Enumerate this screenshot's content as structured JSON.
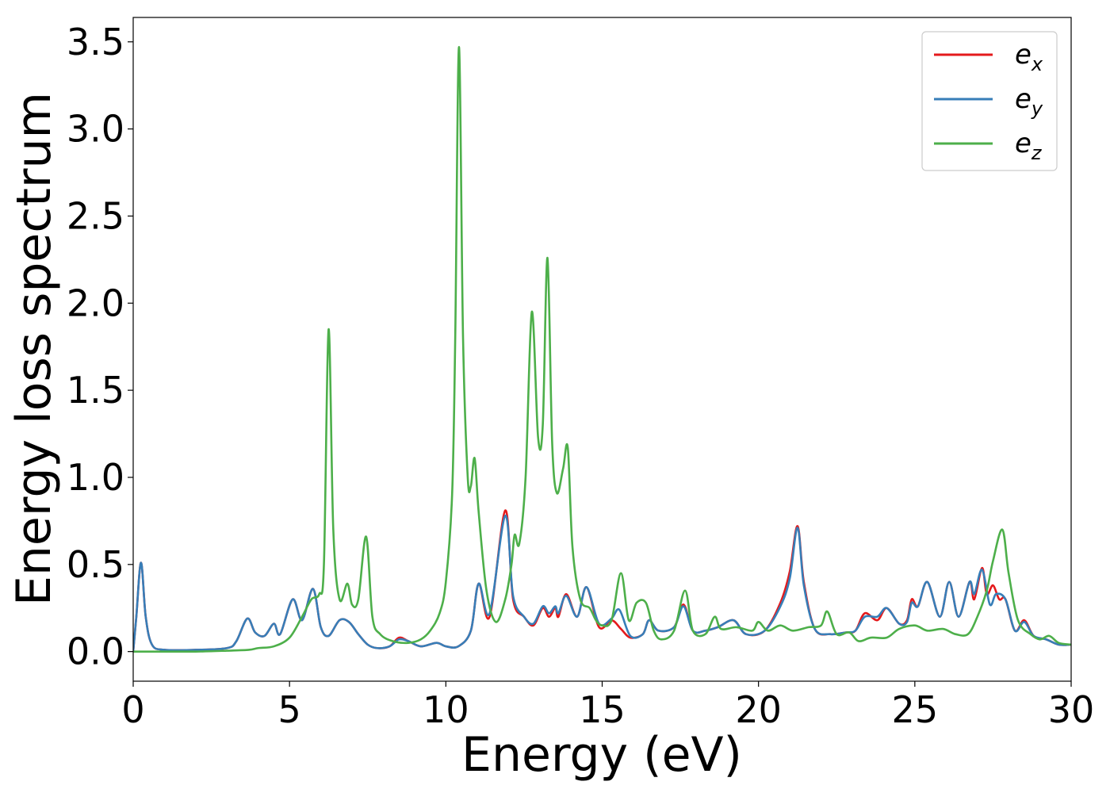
{
  "chart_data": {
    "type": "line",
    "title": "",
    "xlabel": "Energy (eV)",
    "ylabel": "Energy loss spectrum",
    "xlim": [
      0,
      30
    ],
    "ylim": [
      -0.17,
      3.64
    ],
    "xticks": [
      0,
      5,
      10,
      15,
      20,
      25,
      30
    ],
    "xtick_labels": [
      "0",
      "5",
      "10",
      "15",
      "20",
      "25",
      "30"
    ],
    "yticks": [
      0.0,
      0.5,
      1.0,
      1.5,
      2.0,
      2.5,
      3.0,
      3.5
    ],
    "ytick_labels": [
      "0.0",
      "0.5",
      "1.0",
      "1.5",
      "2.0",
      "2.5",
      "3.0",
      "3.5"
    ],
    "grid": false,
    "legend_position": "top-right",
    "series": [
      {
        "name": "e_x",
        "base": "e",
        "subscript": "x",
        "color": "#e41a1c",
        "points": [
          [
            0,
            0
          ],
          [
            0.1,
            0.2
          ],
          [
            0.25,
            0.51
          ],
          [
            0.4,
            0.2
          ],
          [
            0.6,
            0.04
          ],
          [
            1,
            0.01
          ],
          [
            2,
            0.01
          ],
          [
            3,
            0.02
          ],
          [
            3.3,
            0.06
          ],
          [
            3.65,
            0.19
          ],
          [
            3.9,
            0.11
          ],
          [
            4.2,
            0.09
          ],
          [
            4.5,
            0.16
          ],
          [
            4.7,
            0.1
          ],
          [
            5.1,
            0.3
          ],
          [
            5.4,
            0.18
          ],
          [
            5.75,
            0.36
          ],
          [
            6.0,
            0.14
          ],
          [
            6.25,
            0.09
          ],
          [
            6.6,
            0.18
          ],
          [
            6.9,
            0.17
          ],
          [
            7.2,
            0.1
          ],
          [
            7.5,
            0.04
          ],
          [
            7.8,
            0.02
          ],
          [
            8.2,
            0.03
          ],
          [
            8.5,
            0.08
          ],
          [
            8.8,
            0.06
          ],
          [
            9.2,
            0.03
          ],
          [
            9.7,
            0.05
          ],
          [
            10.0,
            0.03
          ],
          [
            10.4,
            0.03
          ],
          [
            10.8,
            0.12
          ],
          [
            11.05,
            0.39
          ],
          [
            11.4,
            0.2
          ],
          [
            11.9,
            0.81
          ],
          [
            12.15,
            0.3
          ],
          [
            12.5,
            0.2
          ],
          [
            12.8,
            0.15
          ],
          [
            13.1,
            0.25
          ],
          [
            13.3,
            0.2
          ],
          [
            13.5,
            0.25
          ],
          [
            13.6,
            0.2
          ],
          [
            13.85,
            0.33
          ],
          [
            14.2,
            0.2
          ],
          [
            14.5,
            0.37
          ],
          [
            14.9,
            0.14
          ],
          [
            15.3,
            0.18
          ],
          [
            15.6,
            0.13
          ],
          [
            15.9,
            0.08
          ],
          [
            16.3,
            0.1
          ],
          [
            16.5,
            0.18
          ],
          [
            16.8,
            0.12
          ],
          [
            17.3,
            0.14
          ],
          [
            17.6,
            0.27
          ],
          [
            17.9,
            0.12
          ],
          [
            18.3,
            0.12
          ],
          [
            18.7,
            0.14
          ],
          [
            19.2,
            0.18
          ],
          [
            19.6,
            0.1
          ],
          [
            20.2,
            0.12
          ],
          [
            20.7,
            0.28
          ],
          [
            21.0,
            0.46
          ],
          [
            21.25,
            0.72
          ],
          [
            21.45,
            0.4
          ],
          [
            21.8,
            0.13
          ],
          [
            22.3,
            0.1
          ],
          [
            22.8,
            0.11
          ],
          [
            23.1,
            0.12
          ],
          [
            23.4,
            0.22
          ],
          [
            23.8,
            0.18
          ],
          [
            24.1,
            0.25
          ],
          [
            24.5,
            0.16
          ],
          [
            24.75,
            0.18
          ],
          [
            24.9,
            0.3
          ],
          [
            25.1,
            0.26
          ],
          [
            25.4,
            0.4
          ],
          [
            25.8,
            0.2
          ],
          [
            26.1,
            0.4
          ],
          [
            26.4,
            0.2
          ],
          [
            26.75,
            0.4
          ],
          [
            26.9,
            0.3
          ],
          [
            27.15,
            0.48
          ],
          [
            27.3,
            0.33
          ],
          [
            27.5,
            0.38
          ],
          [
            27.7,
            0.3
          ],
          [
            27.9,
            0.3
          ],
          [
            28.2,
            0.12
          ],
          [
            28.5,
            0.18
          ],
          [
            28.8,
            0.09
          ],
          [
            29.2,
            0.07
          ],
          [
            29.6,
            0.04
          ],
          [
            30,
            0.04
          ]
        ]
      },
      {
        "name": "e_y",
        "base": "e",
        "subscript": "y",
        "color": "#377eb8",
        "points": [
          [
            0,
            0
          ],
          [
            0.1,
            0.2
          ],
          [
            0.25,
            0.51
          ],
          [
            0.4,
            0.2
          ],
          [
            0.6,
            0.04
          ],
          [
            1,
            0.01
          ],
          [
            2,
            0.01
          ],
          [
            3,
            0.02
          ],
          [
            3.3,
            0.06
          ],
          [
            3.65,
            0.19
          ],
          [
            3.9,
            0.11
          ],
          [
            4.2,
            0.09
          ],
          [
            4.5,
            0.16
          ],
          [
            4.7,
            0.1
          ],
          [
            5.1,
            0.3
          ],
          [
            5.4,
            0.18
          ],
          [
            5.75,
            0.36
          ],
          [
            6.0,
            0.14
          ],
          [
            6.25,
            0.09
          ],
          [
            6.6,
            0.18
          ],
          [
            6.9,
            0.17
          ],
          [
            7.2,
            0.1
          ],
          [
            7.5,
            0.04
          ],
          [
            7.8,
            0.02
          ],
          [
            8.2,
            0.03
          ],
          [
            8.5,
            0.07
          ],
          [
            8.8,
            0.06
          ],
          [
            9.2,
            0.03
          ],
          [
            9.7,
            0.05
          ],
          [
            10.0,
            0.03
          ],
          [
            10.4,
            0.03
          ],
          [
            10.8,
            0.12
          ],
          [
            11.05,
            0.39
          ],
          [
            11.4,
            0.22
          ],
          [
            11.9,
            0.78
          ],
          [
            12.15,
            0.32
          ],
          [
            12.5,
            0.2
          ],
          [
            12.8,
            0.16
          ],
          [
            13.1,
            0.26
          ],
          [
            13.3,
            0.22
          ],
          [
            13.5,
            0.26
          ],
          [
            13.6,
            0.22
          ],
          [
            13.85,
            0.32
          ],
          [
            14.2,
            0.2
          ],
          [
            14.5,
            0.37
          ],
          [
            14.9,
            0.16
          ],
          [
            15.3,
            0.19
          ],
          [
            15.55,
            0.24
          ],
          [
            15.9,
            0.09
          ],
          [
            16.3,
            0.1
          ],
          [
            16.5,
            0.18
          ],
          [
            16.8,
            0.12
          ],
          [
            17.3,
            0.14
          ],
          [
            17.6,
            0.26
          ],
          [
            17.9,
            0.12
          ],
          [
            18.3,
            0.12
          ],
          [
            18.7,
            0.14
          ],
          [
            19.2,
            0.18
          ],
          [
            19.6,
            0.1
          ],
          [
            20.2,
            0.12
          ],
          [
            20.7,
            0.26
          ],
          [
            21.0,
            0.42
          ],
          [
            21.25,
            0.71
          ],
          [
            21.45,
            0.38
          ],
          [
            21.8,
            0.13
          ],
          [
            22.3,
            0.1
          ],
          [
            22.8,
            0.11
          ],
          [
            23.1,
            0.12
          ],
          [
            23.4,
            0.2
          ],
          [
            23.8,
            0.2
          ],
          [
            24.1,
            0.25
          ],
          [
            24.5,
            0.16
          ],
          [
            24.75,
            0.17
          ],
          [
            24.9,
            0.28
          ],
          [
            25.1,
            0.26
          ],
          [
            25.4,
            0.4
          ],
          [
            25.8,
            0.2
          ],
          [
            26.1,
            0.4
          ],
          [
            26.4,
            0.2
          ],
          [
            26.75,
            0.4
          ],
          [
            26.9,
            0.33
          ],
          [
            27.15,
            0.47
          ],
          [
            27.4,
            0.27
          ],
          [
            27.6,
            0.33
          ],
          [
            27.9,
            0.3
          ],
          [
            28.2,
            0.12
          ],
          [
            28.5,
            0.17
          ],
          [
            28.8,
            0.09
          ],
          [
            29.2,
            0.07
          ],
          [
            29.6,
            0.04
          ],
          [
            30,
            0.04
          ]
        ]
      },
      {
        "name": "e_z",
        "base": "e",
        "subscript": "z",
        "color": "#4daf4a",
        "points": [
          [
            0,
            0
          ],
          [
            1,
            0
          ],
          [
            2,
            0
          ],
          [
            3,
            0.005
          ],
          [
            3.7,
            0.01
          ],
          [
            4.0,
            0.02
          ],
          [
            4.5,
            0.03
          ],
          [
            5.0,
            0.08
          ],
          [
            5.4,
            0.2
          ],
          [
            5.7,
            0.3
          ],
          [
            5.95,
            0.33
          ],
          [
            6.1,
            0.5
          ],
          [
            6.25,
            1.85
          ],
          [
            6.4,
            0.7
          ],
          [
            6.6,
            0.3
          ],
          [
            6.85,
            0.39
          ],
          [
            7.0,
            0.27
          ],
          [
            7.2,
            0.3
          ],
          [
            7.45,
            0.66
          ],
          [
            7.65,
            0.2
          ],
          [
            7.9,
            0.1
          ],
          [
            8.3,
            0.06
          ],
          [
            8.8,
            0.05
          ],
          [
            9.2,
            0.07
          ],
          [
            9.5,
            0.12
          ],
          [
            9.8,
            0.22
          ],
          [
            10.0,
            0.4
          ],
          [
            10.2,
            0.9
          ],
          [
            10.3,
            1.8
          ],
          [
            10.42,
            3.47
          ],
          [
            10.55,
            1.8
          ],
          [
            10.7,
            1.0
          ],
          [
            10.8,
            0.95
          ],
          [
            10.92,
            1.11
          ],
          [
            11.05,
            0.8
          ],
          [
            11.3,
            0.35
          ],
          [
            11.6,
            0.17
          ],
          [
            11.9,
            0.3
          ],
          [
            12.1,
            0.5
          ],
          [
            12.2,
            0.67
          ],
          [
            12.35,
            0.62
          ],
          [
            12.55,
            1.0
          ],
          [
            12.75,
            1.95
          ],
          [
            12.95,
            1.23
          ],
          [
            13.1,
            1.3
          ],
          [
            13.25,
            2.26
          ],
          [
            13.4,
            1.2
          ],
          [
            13.55,
            0.91
          ],
          [
            13.75,
            1.05
          ],
          [
            13.9,
            1.17
          ],
          [
            14.05,
            0.6
          ],
          [
            14.3,
            0.3
          ],
          [
            14.6,
            0.25
          ],
          [
            14.8,
            0.18
          ],
          [
            15.0,
            0.15
          ],
          [
            15.3,
            0.18
          ],
          [
            15.6,
            0.45
          ],
          [
            15.85,
            0.18
          ],
          [
            16.1,
            0.28
          ],
          [
            16.4,
            0.28
          ],
          [
            16.65,
            0.12
          ],
          [
            16.9,
            0.07
          ],
          [
            17.3,
            0.12
          ],
          [
            17.65,
            0.35
          ],
          [
            17.9,
            0.12
          ],
          [
            18.3,
            0.1
          ],
          [
            18.6,
            0.2
          ],
          [
            18.8,
            0.13
          ],
          [
            19.3,
            0.14
          ],
          [
            19.8,
            0.12
          ],
          [
            20.0,
            0.17
          ],
          [
            20.3,
            0.12
          ],
          [
            20.7,
            0.15
          ],
          [
            21.1,
            0.12
          ],
          [
            21.6,
            0.14
          ],
          [
            22.0,
            0.15
          ],
          [
            22.2,
            0.23
          ],
          [
            22.5,
            0.1
          ],
          [
            22.9,
            0.11
          ],
          [
            23.2,
            0.06
          ],
          [
            23.6,
            0.08
          ],
          [
            24.1,
            0.08
          ],
          [
            24.5,
            0.13
          ],
          [
            25.0,
            0.15
          ],
          [
            25.4,
            0.12
          ],
          [
            25.9,
            0.13
          ],
          [
            26.3,
            0.1
          ],
          [
            26.7,
            0.1
          ],
          [
            27.0,
            0.2
          ],
          [
            27.3,
            0.35
          ],
          [
            27.5,
            0.52
          ],
          [
            27.8,
            0.7
          ],
          [
            28.0,
            0.45
          ],
          [
            28.3,
            0.18
          ],
          [
            28.7,
            0.1
          ],
          [
            29.0,
            0.07
          ],
          [
            29.3,
            0.09
          ],
          [
            29.6,
            0.05
          ],
          [
            30,
            0.04
          ]
        ]
      }
    ]
  }
}
